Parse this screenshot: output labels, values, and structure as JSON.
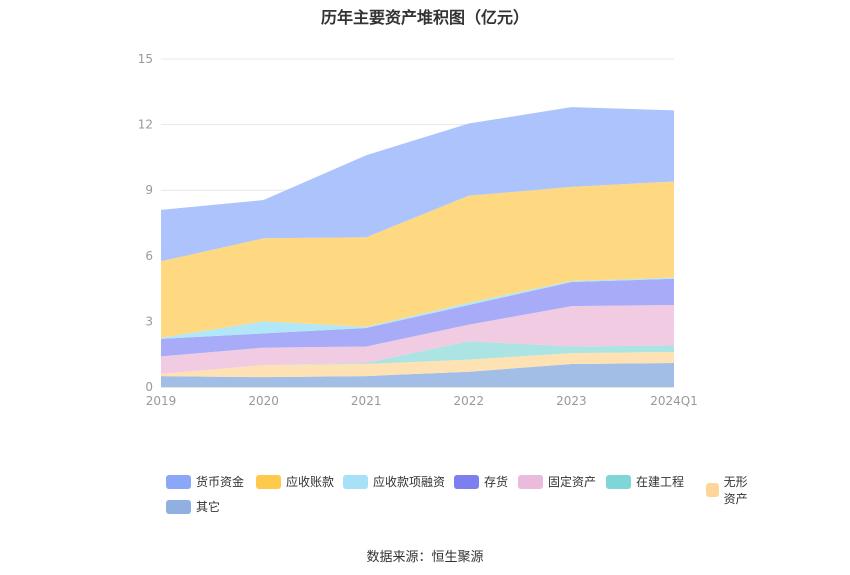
{
  "title": "历年主要资产堆积图（亿元）",
  "source": "数据来源：恒生聚源",
  "chart_data": {
    "type": "area",
    "stacked": true,
    "categories": [
      "2019",
      "2020",
      "2021",
      "2022",
      "2023",
      "2024Q1"
    ],
    "ylim": [
      0,
      15
    ],
    "yticks": [
      0,
      3,
      6,
      9,
      12,
      15
    ],
    "grid": true,
    "legend_position": "bottom",
    "series": [
      {
        "name": "其它",
        "color": "#9dbbe6",
        "values": [
          0.5,
          0.45,
          0.5,
          0.7,
          1.05,
          1.1
        ]
      },
      {
        "name": "无形资产",
        "color": "#ffe0b0",
        "values": [
          0.1,
          0.55,
          0.55,
          0.55,
          0.5,
          0.5
        ]
      },
      {
        "name": "在建工程",
        "color": "#a8e3e3",
        "values": [
          0.0,
          0.0,
          0.05,
          0.85,
          0.3,
          0.3
        ]
      },
      {
        "name": "固定资产",
        "color": "#f0c8e0",
        "values": [
          0.8,
          0.8,
          0.75,
          0.75,
          1.85,
          1.85
        ]
      },
      {
        "name": "存货",
        "color": "#a3a6f7",
        "values": [
          0.8,
          0.65,
          0.85,
          0.9,
          1.1,
          1.2
        ]
      },
      {
        "name": "应收款项融资",
        "color": "#ade6f7",
        "values": [
          0.05,
          0.55,
          0.05,
          0.1,
          0.05,
          0.05
        ]
      },
      {
        "name": "应收账款",
        "color": "#ffd77a",
        "values": [
          3.5,
          3.8,
          4.1,
          4.9,
          4.3,
          4.4
        ]
      },
      {
        "name": "货币资金",
        "color": "#a8c0fc",
        "values": [
          2.35,
          1.75,
          3.75,
          3.3,
          3.65,
          3.25
        ]
      }
    ],
    "legend": [
      {
        "name": "货币资金",
        "color": "#8aa8f7"
      },
      {
        "name": "应收账款",
        "color": "#ffc94d"
      },
      {
        "name": "应收款项融资",
        "color": "#a6e1f7"
      },
      {
        "name": "存货",
        "color": "#7b7ff0"
      },
      {
        "name": "固定资产",
        "color": "#ebbbdd"
      },
      {
        "name": "在建工程",
        "color": "#7fd6d6"
      },
      {
        "name": "无形资产",
        "color": "#ffd699"
      },
      {
        "name": "其它",
        "color": "#8fb0e0"
      }
    ]
  }
}
